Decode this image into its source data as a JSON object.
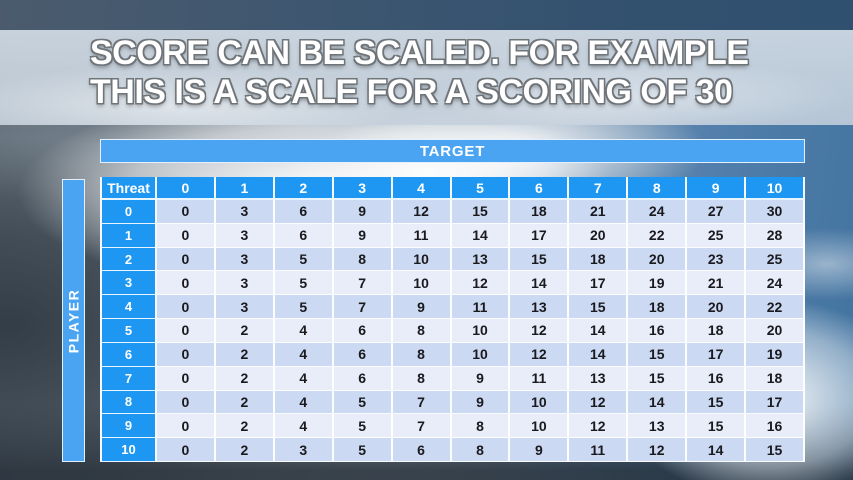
{
  "title": {
    "line1": "SCORE CAN BE SCALED. FOR EXAMPLE",
    "line2": "THIS IS A SCALE FOR A SCORING OF 30"
  },
  "table": {
    "target_label": "TARGET",
    "player_label": "PLAYER",
    "corner_label": "Threat",
    "column_headers": [
      "0",
      "1",
      "2",
      "3",
      "4",
      "5",
      "6",
      "7",
      "8",
      "9",
      "10"
    ],
    "row_headers": [
      "0",
      "1",
      "2",
      "3",
      "4",
      "5",
      "6",
      "7",
      "8",
      "9",
      "10"
    ],
    "rows": [
      [
        0,
        3,
        6,
        9,
        12,
        15,
        18,
        21,
        24,
        27,
        30
      ],
      [
        0,
        3,
        6,
        9,
        11,
        14,
        17,
        20,
        22,
        25,
        28
      ],
      [
        0,
        3,
        5,
        8,
        10,
        13,
        15,
        18,
        20,
        23,
        25
      ],
      [
        0,
        3,
        5,
        7,
        10,
        12,
        14,
        17,
        19,
        21,
        24
      ],
      [
        0,
        3,
        5,
        7,
        9,
        11,
        13,
        15,
        18,
        20,
        22
      ],
      [
        0,
        2,
        4,
        6,
        8,
        10,
        12,
        14,
        16,
        18,
        20
      ],
      [
        0,
        2,
        4,
        6,
        8,
        10,
        12,
        14,
        15,
        17,
        19
      ],
      [
        0,
        2,
        4,
        6,
        8,
        9,
        11,
        13,
        15,
        16,
        18
      ],
      [
        0,
        2,
        4,
        5,
        7,
        9,
        10,
        12,
        14,
        15,
        17
      ],
      [
        0,
        2,
        4,
        5,
        7,
        8,
        10,
        12,
        13,
        15,
        16
      ],
      [
        0,
        2,
        3,
        5,
        6,
        8,
        9,
        11,
        12,
        14,
        15
      ]
    ]
  },
  "colors": {
    "bar_blue": "#4aa4f2",
    "header_blue": "#1e97f2",
    "row_even": "#ccd9f3",
    "row_odd": "#e8edf9"
  }
}
